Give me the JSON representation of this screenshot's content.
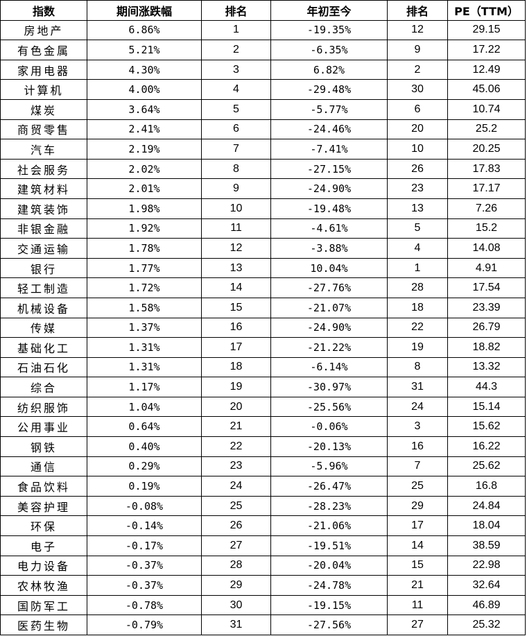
{
  "headers": [
    "指数",
    "期间涨跌幅",
    "排名",
    "年初至今",
    "排名",
    "PE（TTM）"
  ],
  "rows": [
    [
      "房地产",
      "6.86%",
      "1",
      "-19.35%",
      "12",
      "29.15"
    ],
    [
      "有色金属",
      "5.21%",
      "2",
      "-6.35%",
      "9",
      "17.22"
    ],
    [
      "家用电器",
      "4.30%",
      "3",
      "6.82%",
      "2",
      "12.49"
    ],
    [
      "计算机",
      "4.00%",
      "4",
      "-29.48%",
      "30",
      "45.06"
    ],
    [
      "煤炭",
      "3.64%",
      "5",
      "-5.77%",
      "6",
      "10.74"
    ],
    [
      "商贸零售",
      "2.41%",
      "6",
      "-24.46%",
      "20",
      "25.2"
    ],
    [
      "汽车",
      "2.19%",
      "7",
      "-7.41%",
      "10",
      "20.25"
    ],
    [
      "社会服务",
      "2.02%",
      "8",
      "-27.15%",
      "26",
      "17.83"
    ],
    [
      "建筑材料",
      "2.01%",
      "9",
      "-24.90%",
      "23",
      "17.17"
    ],
    [
      "建筑装饰",
      "1.98%",
      "10",
      "-19.48%",
      "13",
      "7.26"
    ],
    [
      "非银金融",
      "1.92%",
      "11",
      "-4.61%",
      "5",
      "15.2"
    ],
    [
      "交通运输",
      "1.78%",
      "12",
      "-3.88%",
      "4",
      "14.08"
    ],
    [
      "银行",
      "1.77%",
      "13",
      "10.04%",
      "1",
      "4.91"
    ],
    [
      "轻工制造",
      "1.72%",
      "14",
      "-27.76%",
      "28",
      "17.54"
    ],
    [
      "机械设备",
      "1.58%",
      "15",
      "-21.07%",
      "18",
      "23.39"
    ],
    [
      "传媒",
      "1.37%",
      "16",
      "-24.90%",
      "22",
      "26.79"
    ],
    [
      "基础化工",
      "1.31%",
      "17",
      "-21.22%",
      "19",
      "18.82"
    ],
    [
      "石油石化",
      "1.31%",
      "18",
      "-6.14%",
      "8",
      "13.32"
    ],
    [
      "综合",
      "1.17%",
      "19",
      "-30.97%",
      "31",
      "44.3"
    ],
    [
      "纺织服饰",
      "1.04%",
      "20",
      "-25.56%",
      "24",
      "15.14"
    ],
    [
      "公用事业",
      "0.64%",
      "21",
      "-0.06%",
      "3",
      "15.62"
    ],
    [
      "钢铁",
      "0.40%",
      "22",
      "-20.13%",
      "16",
      "16.22"
    ],
    [
      "通信",
      "0.29%",
      "23",
      "-5.96%",
      "7",
      "25.62"
    ],
    [
      "食品饮料",
      "0.19%",
      "24",
      "-26.47%",
      "25",
      "16.8"
    ],
    [
      "美容护理",
      "-0.08%",
      "25",
      "-28.23%",
      "29",
      "24.84"
    ],
    [
      "环保",
      "-0.14%",
      "26",
      "-21.06%",
      "17",
      "18.04"
    ],
    [
      "电子",
      "-0.17%",
      "27",
      "-19.51%",
      "14",
      "38.59"
    ],
    [
      "电力设备",
      "-0.37%",
      "28",
      "-20.04%",
      "15",
      "22.98"
    ],
    [
      "农林牧渔",
      "-0.37%",
      "29",
      "-24.78%",
      "21",
      "32.64"
    ],
    [
      "国防军工",
      "-0.78%",
      "30",
      "-19.15%",
      "11",
      "46.89"
    ],
    [
      "医药生物",
      "-0.79%",
      "31",
      "-27.56%",
      "27",
      "25.32"
    ]
  ]
}
